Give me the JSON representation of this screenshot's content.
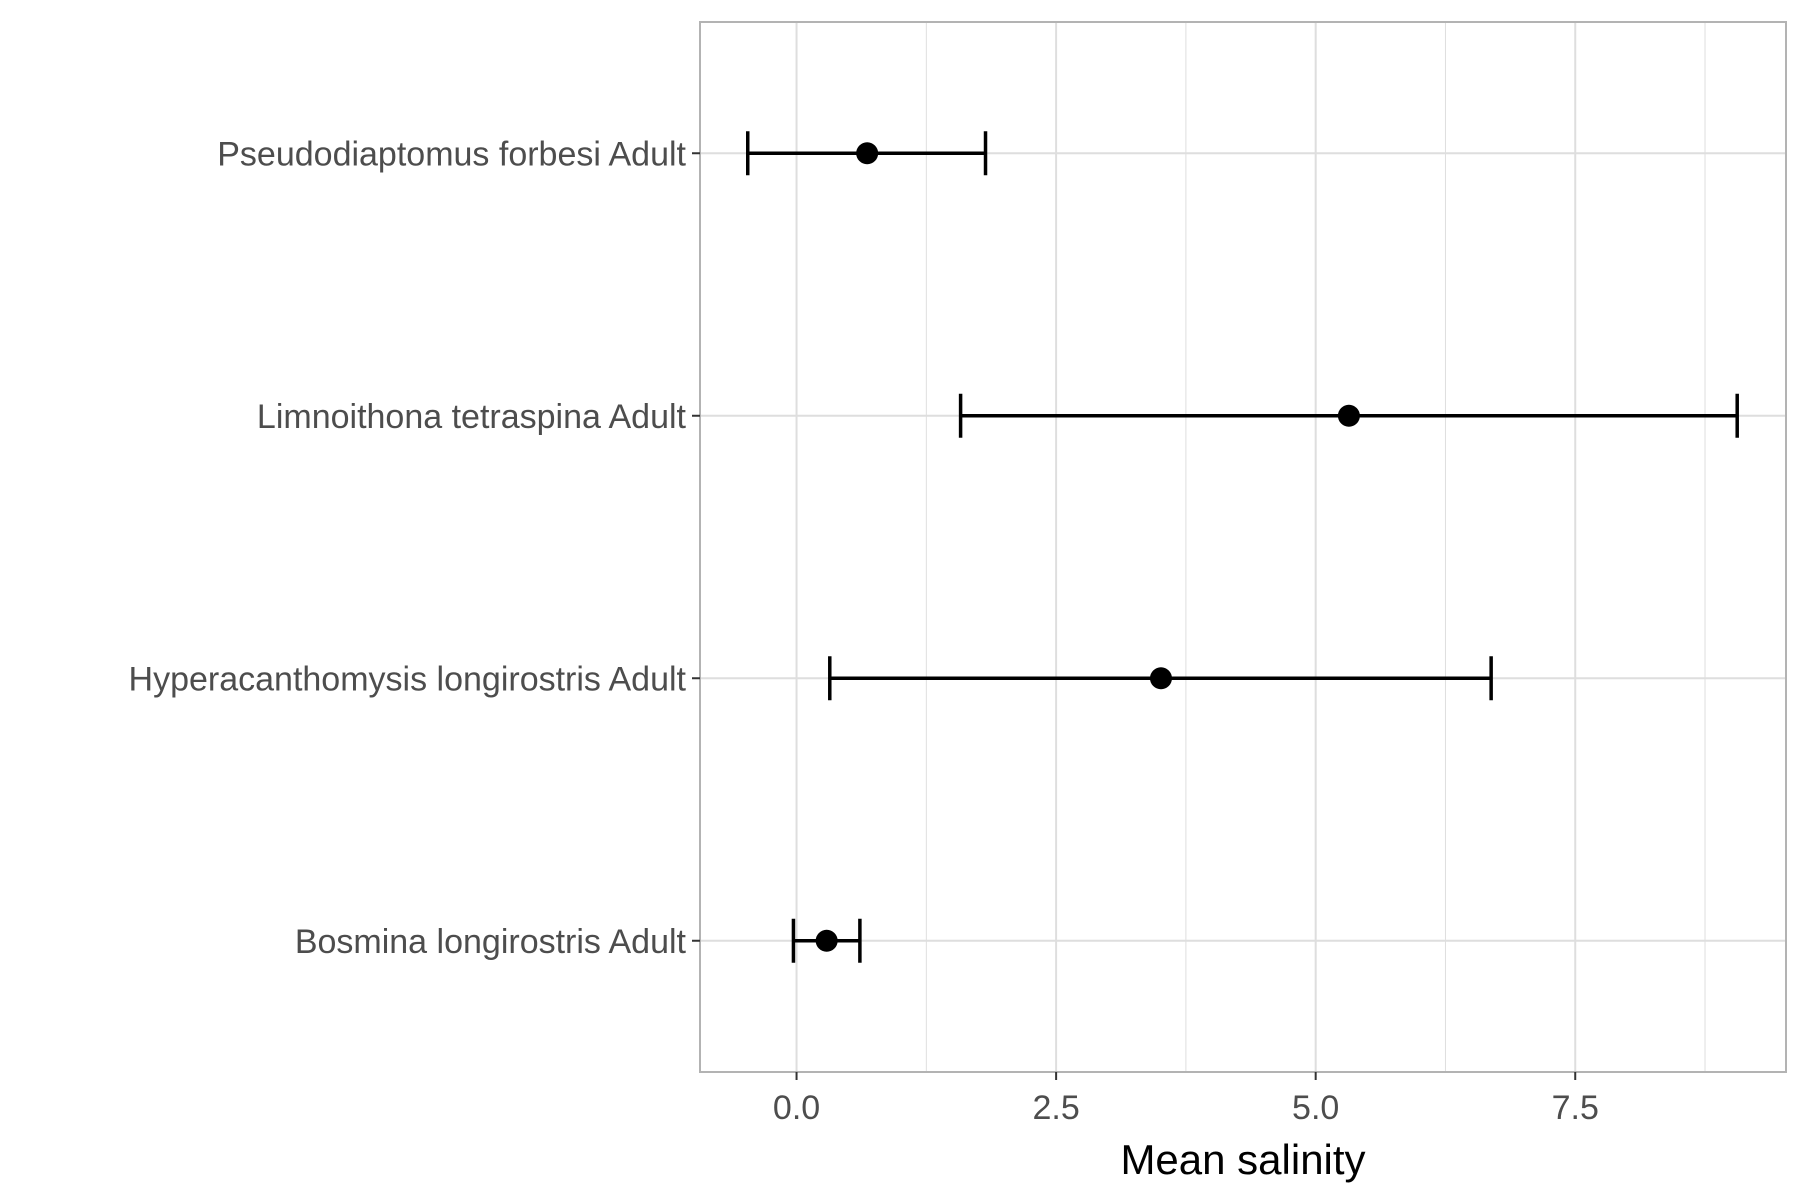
{
  "chart_data": {
    "type": "errorbar",
    "title": "",
    "xlabel": "Mean salinity",
    "ylabel": "",
    "xlim": [
      -0.93,
      9.53
    ],
    "x_ticks": [
      0.0,
      2.5,
      5.0,
      7.5
    ],
    "x_tick_labels": [
      "0.0",
      "2.5",
      "5.0",
      "7.5"
    ],
    "grid": true,
    "legend": "none",
    "categories": [
      "Pseudodiaptomus forbesi Adult",
      "Limnoithona tetraspina Adult",
      "Hyperacanthomysis longirostris Adult",
      "Bosmina longirostris Adult"
    ],
    "points": [
      {
        "label": "Pseudodiaptomus forbesi Adult",
        "mean": 0.68,
        "lower": -0.47,
        "upper": 1.82
      },
      {
        "label": "Limnoithona tetraspina Adult",
        "mean": 5.32,
        "lower": 1.58,
        "upper": 9.06
      },
      {
        "label": "Hyperacanthomysis longirostris Adult",
        "mean": 3.51,
        "lower": 0.32,
        "upper": 6.69
      },
      {
        "label": "Bosmina longirostris Adult",
        "mean": 0.29,
        "lower": -0.03,
        "upper": 0.61
      }
    ],
    "colors": {
      "point": "#000000",
      "errorbar": "#000000",
      "grid": "#dedede",
      "panel_border": "#b3b3b3",
      "tick_text": "#4d4d4d"
    }
  }
}
